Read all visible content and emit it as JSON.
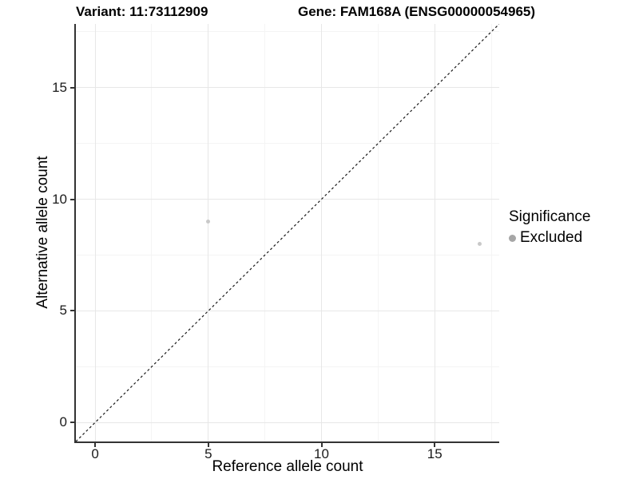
{
  "header": {
    "title_left": "Variant: 11:73112909",
    "title_right": "Gene: FAM168A (ENSG00000054965)"
  },
  "axes": {
    "x_label": "Reference allele count",
    "y_label": "Alternative allele count"
  },
  "legend": {
    "title": "Significance",
    "items": [
      {
        "label": "Excluded",
        "color": "#a6a6a6"
      }
    ]
  },
  "colors": {
    "grid_major": "#e7e7e7",
    "grid_minor": "#f4f4f4",
    "axis_line": "#333333",
    "identity_line": "#1a1a1a",
    "point": "#c9c9c9"
  },
  "chart_data": {
    "type": "scatter",
    "title": "Variant: 11:73112909",
    "subtitle": "Gene: FAM168A (ENSG00000054965)",
    "xlabel": "Reference allele count",
    "ylabel": "Alternative allele count",
    "xlim": [
      -0.85,
      17.85
    ],
    "ylim": [
      -0.85,
      17.85
    ],
    "x_ticks": [
      0,
      5,
      10,
      15
    ],
    "y_ticks": [
      0,
      5,
      10,
      15
    ],
    "x_minor_ticks": [
      2.5,
      7.5,
      12.5,
      17.5
    ],
    "y_minor_ticks": [
      2.5,
      7.5,
      12.5,
      17.5
    ],
    "grid": true,
    "legend_position": "right",
    "series": [
      {
        "name": "Excluded",
        "color": "#c9c9c9",
        "points": [
          [
            5,
            9
          ],
          [
            17,
            8
          ]
        ]
      }
    ],
    "reference_line": {
      "style": "dashed",
      "from": [
        -0.85,
        -0.85
      ],
      "to": [
        17.85,
        17.85
      ]
    }
  }
}
